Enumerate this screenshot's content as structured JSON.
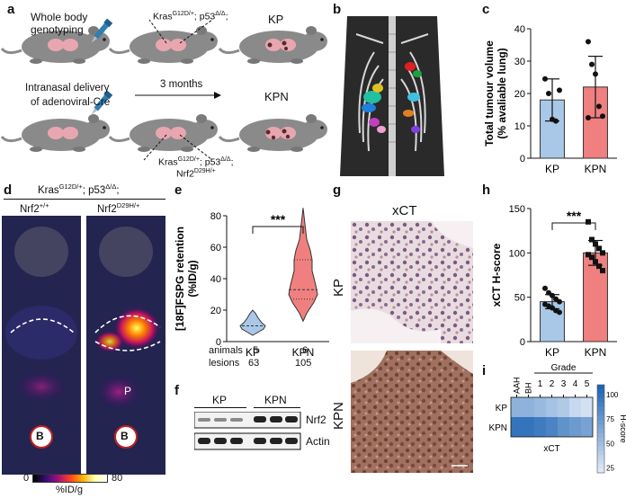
{
  "panels": {
    "a": "a",
    "b": "b",
    "c": "c",
    "d": "d",
    "e": "e",
    "f": "f",
    "g": "g",
    "h": "h",
    "i": "i"
  },
  "panel_a": {
    "genotyping": "Whole body\ngenotyping",
    "genotype_kp": "Krasᴳ¹²ᴰ/+; p53Δ/Δ;",
    "kp": "KP",
    "kpn": "KPN",
    "delivery_line1": "Intranasal delivery",
    "delivery_line2": "of adenoviral-Cre",
    "months": "3 months",
    "genotype_kpn_line1": "Kras G12D/+; p53 Δ/Δ;",
    "genotype_kpn_line2": "Nrf2 D29H/+"
  },
  "panel_d": {
    "header": "Kras G12D/+; p53 Δ/Δ;",
    "col1": "Nrf2 +/+",
    "col2": "Nrf2 D29H/+",
    "marker_b": "B",
    "marker_p": "P",
    "cbar_min": "0",
    "cbar_max": "80",
    "cbar_unit": "%ID/g"
  },
  "chart_data": [
    {
      "type": "bar",
      "panel": "c",
      "categories": [
        "KP",
        "KPN"
      ],
      "values": [
        18,
        22
      ],
      "errors": [
        6.5,
        9.5
      ],
      "points": [
        [
          24.5,
          20,
          12,
          11.5,
          21
        ],
        [
          36,
          29,
          26,
          16,
          13,
          12.5
        ]
      ],
      "ylabel": "Total tumour volume\n(% avaliable lung)",
      "ylim": [
        0,
        40
      ],
      "yticks": [
        0,
        10,
        20,
        30,
        40
      ],
      "colors": [
        "#a9c8e8",
        "#f08080"
      ]
    },
    {
      "type": "violin",
      "panel": "e",
      "categories": [
        "KP",
        "KPN"
      ],
      "ylabel": "[18F]FSPG retention\n(%ID/g)",
      "ylim": [
        0,
        80
      ],
      "yticks": [
        0,
        20,
        40,
        60,
        80
      ],
      "significance": "***",
      "animals_label": "animals",
      "lesions_label": "lesions",
      "animals": [
        "5",
        "6"
      ],
      "lesions": [
        "63",
        "105"
      ],
      "colors": [
        "#a9c8e8",
        "#f08080"
      ]
    },
    {
      "type": "bar",
      "panel": "h",
      "categories": [
        "KP",
        "KPN"
      ],
      "values": [
        45,
        100
      ],
      "errors": [
        8,
        14
      ],
      "points": [
        [
          60,
          55,
          52,
          48,
          45,
          42,
          40,
          38,
          35,
          33
        ],
        [
          135,
          115,
          110,
          105,
          100,
          98,
          95,
          90,
          85,
          80
        ]
      ],
      "ylabel": "xCT H-score",
      "ylim": [
        0,
        150
      ],
      "yticks": [
        0,
        50,
        100,
        150
      ],
      "significance": "***",
      "colors": [
        "#a9c8e8",
        "#f08080"
      ]
    },
    {
      "type": "heatmap",
      "panel": "i",
      "rows": [
        "KP",
        "KPN"
      ],
      "columns": [
        "AAH",
        "BH",
        "1",
        "2",
        "3",
        "4",
        "5"
      ],
      "values": [
        [
          60,
          60,
          55,
          50,
          45,
          35,
          30
        ],
        [
          100,
          100,
          95,
          90,
          80,
          75,
          70
        ]
      ],
      "grade_label": "Grade",
      "xlabel": "xCT",
      "cbar_label": "H-score",
      "cbar_ticks": [
        25,
        50,
        75,
        100
      ],
      "range": [
        20,
        110
      ]
    }
  ],
  "panel_f": {
    "kp": "KP",
    "kpn": "KPN",
    "band1": "Nrf2",
    "band2": "Actin"
  },
  "panel_g": {
    "title": "xCT",
    "row1": "KP",
    "row2": "KPN"
  }
}
